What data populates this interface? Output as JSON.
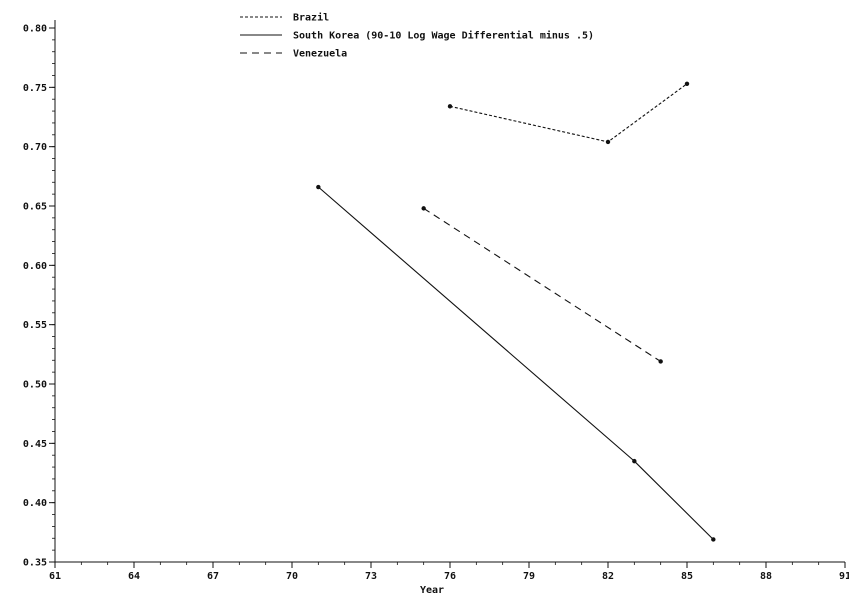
{
  "chart_data": {
    "type": "line",
    "xlabel": "Year",
    "ylabel": "",
    "xlim": [
      61,
      91
    ],
    "ylim": [
      0.35,
      0.8
    ],
    "x_ticks": [
      "61",
      "64",
      "67",
      "70",
      "73",
      "76",
      "79",
      "82",
      "85",
      "88",
      "91"
    ],
    "y_ticks": [
      "0.35",
      "0.40",
      "0.45",
      "0.50",
      "0.55",
      "0.60",
      "0.65",
      "0.70",
      "0.75",
      "0.80"
    ],
    "grid": false,
    "legend_position": "top-center",
    "series": [
      {
        "name": "Brazil",
        "line_style": "dotted",
        "color": "#111111",
        "points": [
          {
            "x": 76,
            "y": 0.734
          },
          {
            "x": 82,
            "y": 0.704
          },
          {
            "x": 85,
            "y": 0.753
          }
        ]
      },
      {
        "name": "South Korea (90-10 Log Wage Differential minus .5)",
        "line_style": "solid",
        "color": "#111111",
        "points": [
          {
            "x": 71,
            "y": 0.666
          },
          {
            "x": 83,
            "y": 0.435
          },
          {
            "x": 86,
            "y": 0.369
          }
        ]
      },
      {
        "name": "Venezuela",
        "line_style": "dashed",
        "color": "#111111",
        "points": [
          {
            "x": 75,
            "y": 0.648
          },
          {
            "x": 84,
            "y": 0.519
          }
        ]
      }
    ]
  }
}
